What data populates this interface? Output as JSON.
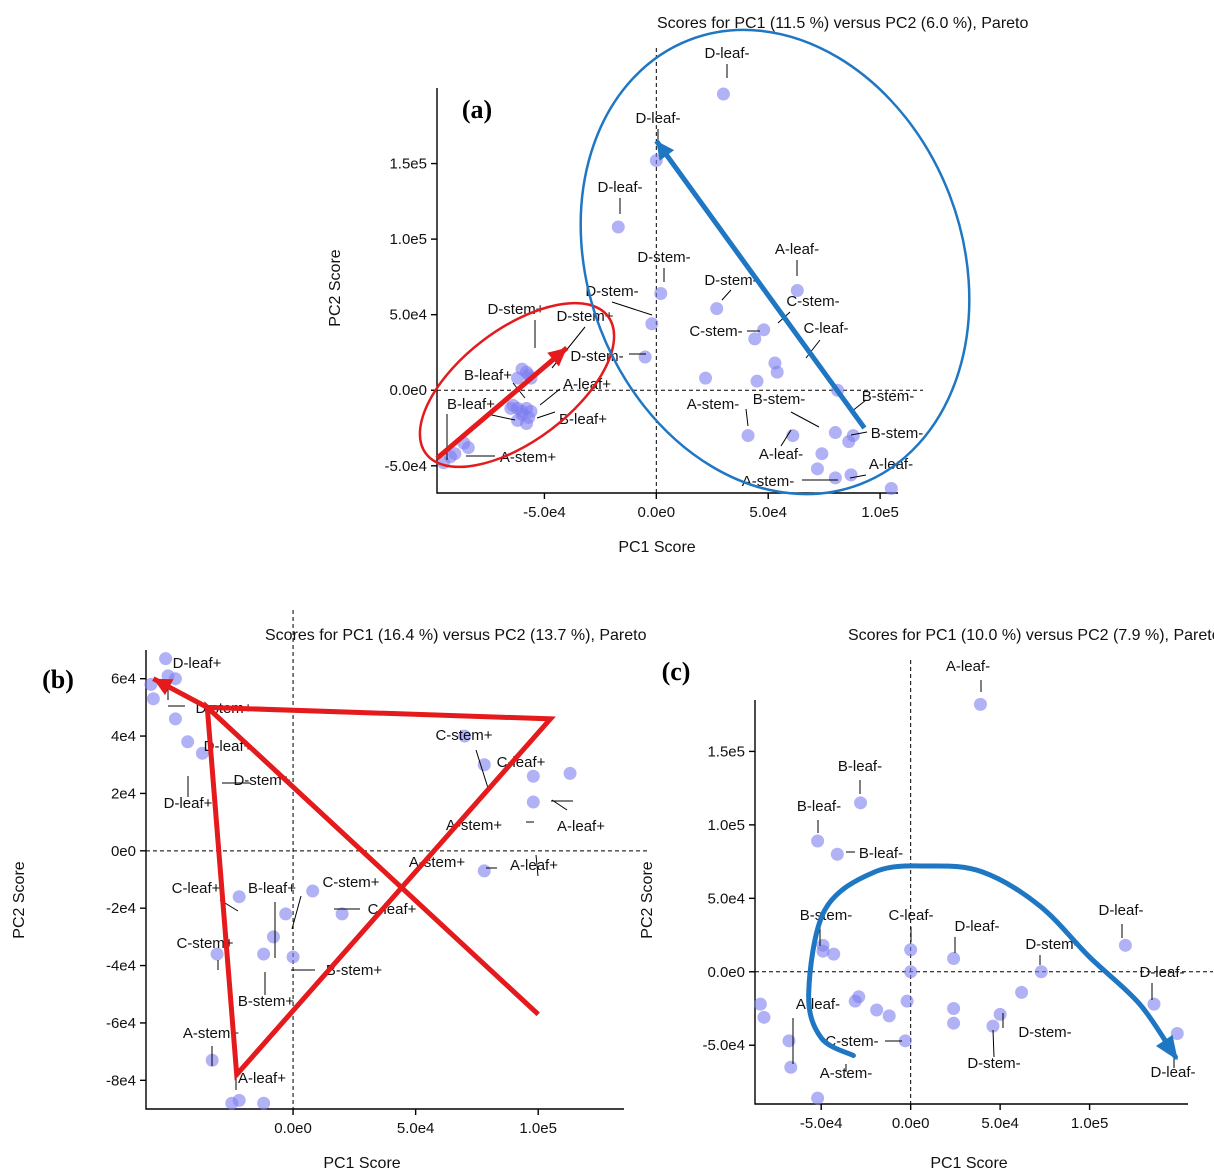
{
  "chart_data": [
    {
      "id": "a",
      "type": "scatter",
      "panel_label": "(a)",
      "title": "Scores for PC1 (11.5 %) versus PC2 (6.0 %), Pareto",
      "xlabel": "PC1 Score",
      "ylabel": "PC2 Score",
      "xticks": [
        "-5.0e4",
        "0.0e0",
        "5.0e4",
        "1.0e5"
      ],
      "yticks": [
        "-5.0e4",
        "0.0e0",
        "5.0e4",
        "1.0e5",
        "1.5e5"
      ],
      "xlim": [
        -98000,
        108000
      ],
      "ylim": [
        -68000,
        200000
      ],
      "points": [
        [
          30000,
          196000
        ],
        [
          0,
          152000
        ],
        [
          -17000,
          108000
        ],
        [
          2000,
          64000
        ],
        [
          27000,
          54000
        ],
        [
          -2000,
          44000
        ],
        [
          -5000,
          22000
        ],
        [
          63000,
          66000
        ],
        [
          44000,
          34000
        ],
        [
          48000,
          40000
        ],
        [
          53000,
          18000
        ],
        [
          54000,
          12000
        ],
        [
          22000,
          8000
        ],
        [
          45000,
          6000
        ],
        [
          81000,
          0
        ],
        [
          41000,
          -30000
        ],
        [
          61000,
          -30000
        ],
        [
          80000,
          -28000
        ],
        [
          86000,
          -34000
        ],
        [
          88000,
          -30000
        ],
        [
          74000,
          -42000
        ],
        [
          72000,
          -52000
        ],
        [
          80000,
          -58000
        ],
        [
          87000,
          -56000
        ],
        [
          105000,
          -65000
        ],
        [
          -60000,
          14000
        ],
        [
          -57000,
          10000
        ],
        [
          -58000,
          12000
        ],
        [
          -56000,
          8000
        ],
        [
          -62000,
          8000
        ],
        [
          -64000,
          -10000
        ],
        [
          -62000,
          -12000
        ],
        [
          -60000,
          -14000
        ],
        [
          -58000,
          -12000
        ],
        [
          -56000,
          -14000
        ],
        [
          -60000,
          -16000
        ],
        [
          -57000,
          -18000
        ],
        [
          -62000,
          -20000
        ],
        [
          -58000,
          -22000
        ],
        [
          -65000,
          -12000
        ],
        [
          -86000,
          -35000
        ],
        [
          -84000,
          -38000
        ],
        [
          -90000,
          -42000
        ],
        [
          -92000,
          -44000
        ],
        [
          -95000,
          -48000
        ]
      ],
      "labels": [
        "D-leaf-",
        "D-leaf-",
        "D-leaf-",
        "D-stem-",
        "D-stem-",
        "D-stem-",
        "D-stem-",
        "A-leaf-",
        "C-stem-",
        "C-stem-",
        "C-leaf-",
        "B-leaf-",
        "A-stem-",
        "B-stem-",
        "B-stem-",
        "A-leaf-",
        "A-leaf-",
        "A-stem-",
        "D-stem+",
        "D-stem+",
        "D-stem-",
        "B-leaf+",
        "A-leaf+",
        "B-leaf+",
        "A-leaf+",
        "A-stem+"
      ],
      "ellipses": [
        {
          "color": "#e41a1c"
        },
        {
          "color": "#1f77c4"
        }
      ],
      "arrows": [
        {
          "color": "#e41a1c",
          "from": [
            -98000,
            -45000
          ],
          "to": [
            -40000,
            28000
          ]
        },
        {
          "color": "#1f77c4",
          "from": [
            93000,
            -25000
          ],
          "to": [
            0,
            165000
          ]
        }
      ]
    },
    {
      "id": "b",
      "type": "scatter",
      "panel_label": "(b)",
      "title": "Scores for PC1 (16.4 %) versus PC2 (13.7 %), Pareto",
      "xlabel": "PC1 Score",
      "ylabel": "PC2 Score",
      "xticks": [
        "0.0e0",
        "5.0e4",
        "1.0e5"
      ],
      "yticks": [
        "-8e4",
        "-6e4",
        "-4e4",
        "-2e4",
        "0e0",
        "2e4",
        "4e4",
        "6e4"
      ],
      "xlim": [
        -60000,
        135000
      ],
      "ylim": [
        -90000,
        70000
      ],
      "points": [
        [
          -52000,
          67000
        ],
        [
          -51000,
          61000
        ],
        [
          -48000,
          60000
        ],
        [
          -58000,
          58000
        ],
        [
          -57000,
          53000
        ],
        [
          -48000,
          46000
        ],
        [
          -43000,
          38000
        ],
        [
          -37000,
          34000
        ],
        [
          70000,
          40000
        ],
        [
          78000,
          30000
        ],
        [
          98000,
          26000
        ],
        [
          113000,
          27000
        ],
        [
          98000,
          17000
        ],
        [
          78000,
          -7000
        ],
        [
          -22000,
          -16000
        ],
        [
          -31000,
          -36000
        ],
        [
          -8000,
          -30000
        ],
        [
          -3000,
          -22000
        ],
        [
          8000,
          -14000
        ],
        [
          20000,
          -22000
        ],
        [
          -12000,
          -36000
        ],
        [
          0,
          -37000
        ],
        [
          -33000,
          -73000
        ],
        [
          -22000,
          -87000
        ],
        [
          -12000,
          -88000
        ],
        [
          -25000,
          -88000
        ]
      ],
      "labels": [
        "D-leaf+",
        "D-stem+",
        "D-leaf+",
        "D-stem+",
        "D-leaf+",
        "C-stem+",
        "C-leaf+",
        "A-stem+",
        "A-leaf+",
        "A-stem+",
        "A-leaf+",
        "C-leaf+",
        "B-leaf+",
        "C-stem+",
        "C-leaf+",
        "C-stem+",
        "B-stem+",
        "B-stem+",
        "A-stem+",
        "A-leaf+"
      ],
      "polyline": {
        "color": "#e41a1c",
        "points": [
          [
            -35000,
            50000
          ],
          [
            -57000,
            60000
          ],
          [
            -35000,
            50000
          ],
          [
            105000,
            46000
          ],
          [
            -23000,
            -78000
          ],
          [
            -35000,
            50000
          ],
          [
            100000,
            -57000
          ]
        ]
      }
    },
    {
      "id": "c",
      "type": "scatter",
      "panel_label": "(c)",
      "title": "Scores for PC1 (10.0 %) versus PC2 (7.9 %), Pareto",
      "xlabel": "PC1 Score",
      "ylabel": "PC2 Score",
      "xticks": [
        "-5.0e4",
        "0.0e0",
        "5.0e4",
        "1.0e5"
      ],
      "yticks": [
        "-5.0e4",
        "0.0e0",
        "5.0e4",
        "1.0e5",
        "1.5e5"
      ],
      "xlim": [
        -87000,
        155000
      ],
      "ylim": [
        -90000,
        185000
      ],
      "points": [
        [
          39000,
          182000
        ],
        [
          -28000,
          115000
        ],
        [
          -52000,
          89000
        ],
        [
          -41000,
          80000
        ],
        [
          -49000,
          18000
        ],
        [
          -49000,
          14000
        ],
        [
          -43000,
          12000
        ],
        [
          0,
          15000
        ],
        [
          24000,
          9000
        ],
        [
          120000,
          18000
        ],
        [
          0,
          0
        ],
        [
          73000,
          0
        ],
        [
          62000,
          -14000
        ],
        [
          -29000,
          -17000
        ],
        [
          -31000,
          -20000
        ],
        [
          -19000,
          -26000
        ],
        [
          -2000,
          -20000
        ],
        [
          24000,
          -25000
        ],
        [
          24000,
          -35000
        ],
        [
          46000,
          -37000
        ],
        [
          50000,
          -29000
        ],
        [
          -3000,
          -47000
        ],
        [
          -68000,
          -47000
        ],
        [
          -67000,
          -65000
        ],
        [
          -52000,
          -86000
        ],
        [
          -84000,
          -22000
        ],
        [
          -82000,
          -31000
        ],
        [
          -12000,
          -30000
        ],
        [
          136000,
          -22000
        ],
        [
          149000,
          -42000
        ]
      ],
      "labels": [
        "A-leaf-",
        "B-leaf-",
        "B-leaf-",
        "B-leaf-",
        "B-stem-",
        "C-leaf-",
        "D-leaf-",
        "D-stem-",
        "D-leaf-",
        "D-leaf-",
        "A-leaf-",
        "C-stem-",
        "D-stem-",
        "D-stem-",
        "A-stem-",
        "D-leaf-"
      ],
      "curve": {
        "color": "#1f77c4",
        "points": [
          [
            -32000,
            -57000
          ],
          [
            -50000,
            -45000
          ],
          [
            -57000,
            -15000
          ],
          [
            -48000,
            42000
          ],
          [
            -20000,
            68000
          ],
          [
            10000,
            72000
          ],
          [
            40000,
            68000
          ],
          [
            72000,
            45000
          ],
          [
            100000,
            10000
          ],
          [
            128000,
            -22000
          ],
          [
            148000,
            -58000
          ]
        ]
      }
    }
  ]
}
